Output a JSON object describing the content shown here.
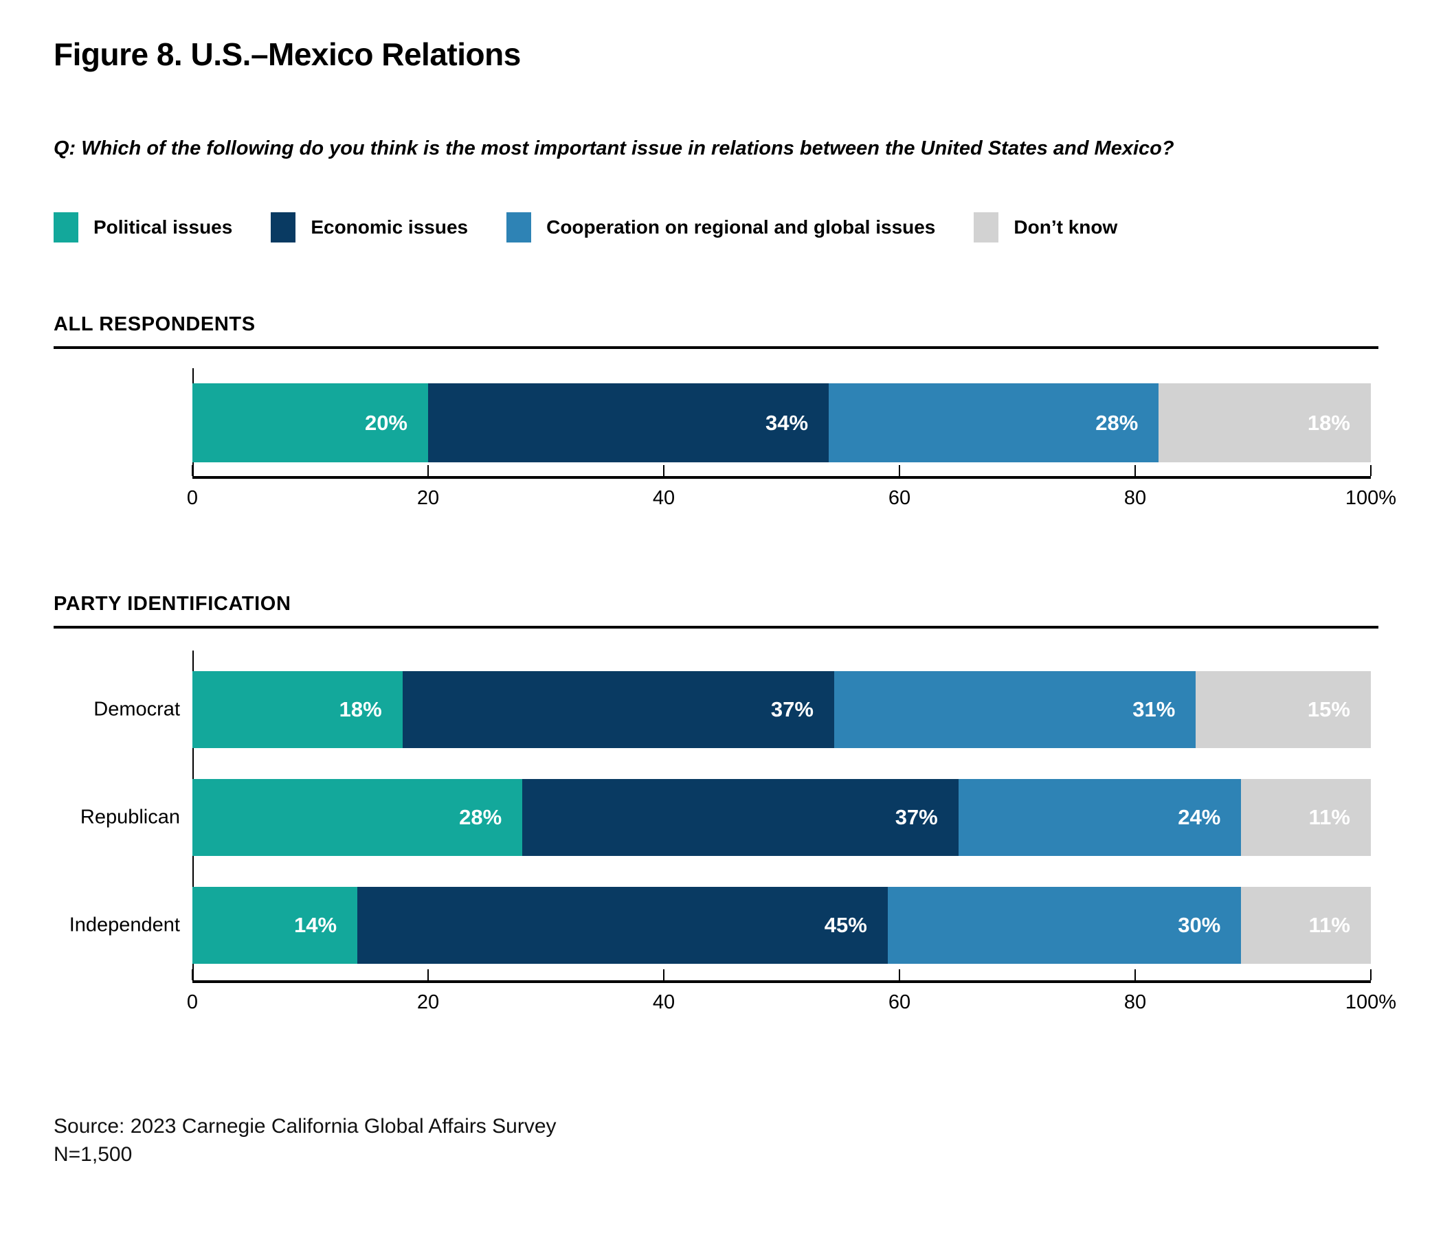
{
  "figure": {
    "title": "Figure 8. U.S.–Mexico Relations",
    "question": "Q: Which of the following do you think is the most important issue in relations between the United States and Mexico?",
    "source_line1": "Source: 2023 Carnegie California Global Affairs Survey",
    "source_line2": "N=1,500"
  },
  "colors": {
    "political_issues": "#13A89B",
    "economic_issues": "#093A62",
    "cooperation": "#2E83B5",
    "dont_know": "#D2D2D2",
    "axis": "#000000",
    "value_label": "#FFFFFF"
  },
  "legend": {
    "items": [
      {
        "label": "Political issues",
        "color": "#13A89B"
      },
      {
        "label": "Economic issues",
        "color": "#093A62"
      },
      {
        "label": "Cooperation on regional and global issues",
        "color": "#2E83B5"
      },
      {
        "label": "Don’t know",
        "color": "#D2D2D2"
      }
    ]
  },
  "chart_data": [
    {
      "type": "bar",
      "variant": "horizontal-stacked",
      "section_title": "ALL RESPONDENTS",
      "categories": [
        "All respondents"
      ],
      "show_category_labels": false,
      "value_suffix": "%",
      "xlim": [
        0,
        100
      ],
      "tick_values": [
        0,
        20,
        40,
        60,
        80,
        100
      ],
      "tick_labels": [
        "0",
        "20",
        "40",
        "60",
        "80",
        "100%"
      ],
      "grid": false,
      "series": [
        {
          "name": "Political issues",
          "color": "#13A89B",
          "values": [
            20
          ]
        },
        {
          "name": "Economic issues",
          "color": "#093A62",
          "values": [
            34
          ]
        },
        {
          "name": "Cooperation on regional and global issues",
          "color": "#2E83B5",
          "values": [
            28
          ]
        },
        {
          "name": "Don’t know",
          "color": "#D2D2D2",
          "values": [
            18
          ]
        }
      ]
    },
    {
      "type": "bar",
      "variant": "horizontal-stacked",
      "section_title": "PARTY IDENTIFICATION",
      "categories": [
        "Democrat",
        "Republican",
        "Independent"
      ],
      "show_category_labels": true,
      "value_suffix": "%",
      "xlim": [
        0,
        100
      ],
      "tick_values": [
        0,
        20,
        40,
        60,
        80,
        100
      ],
      "tick_labels": [
        "0",
        "20",
        "40",
        "60",
        "80",
        "100%"
      ],
      "grid": false,
      "series": [
        {
          "name": "Political issues",
          "color": "#13A89B",
          "values": [
            18,
            28,
            14
          ]
        },
        {
          "name": "Economic issues",
          "color": "#093A62",
          "values": [
            37,
            37,
            45
          ]
        },
        {
          "name": "Cooperation on regional and global issues",
          "color": "#2E83B5",
          "values": [
            31,
            24,
            30
          ]
        },
        {
          "name": "Don’t know",
          "color": "#D2D2D2",
          "values": [
            15,
            11,
            11
          ]
        }
      ]
    }
  ]
}
